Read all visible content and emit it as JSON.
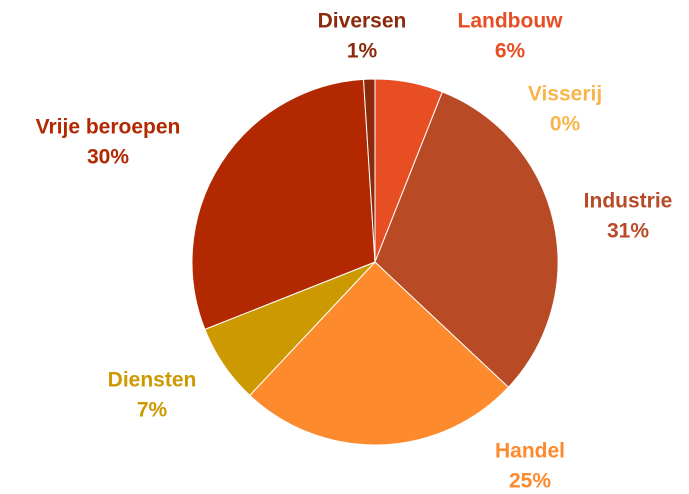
{
  "chart_data": {
    "type": "pie",
    "categories": [
      "Landbouw",
      "Visserij",
      "Industrie",
      "Handel",
      "Diensten",
      "Vrije beroepen",
      "Diversen"
    ],
    "values": [
      6,
      0,
      31,
      25,
      7,
      30,
      1
    ],
    "value_labels": [
      "6%",
      "0%",
      "31%",
      "25%",
      "7%",
      "30%",
      "1%"
    ],
    "colors": [
      "#e84e24",
      "#f9b54c",
      "#b84a26",
      "#fd8a2c",
      "#cc9a00",
      "#b22800",
      "#8c2a0c"
    ]
  }
}
